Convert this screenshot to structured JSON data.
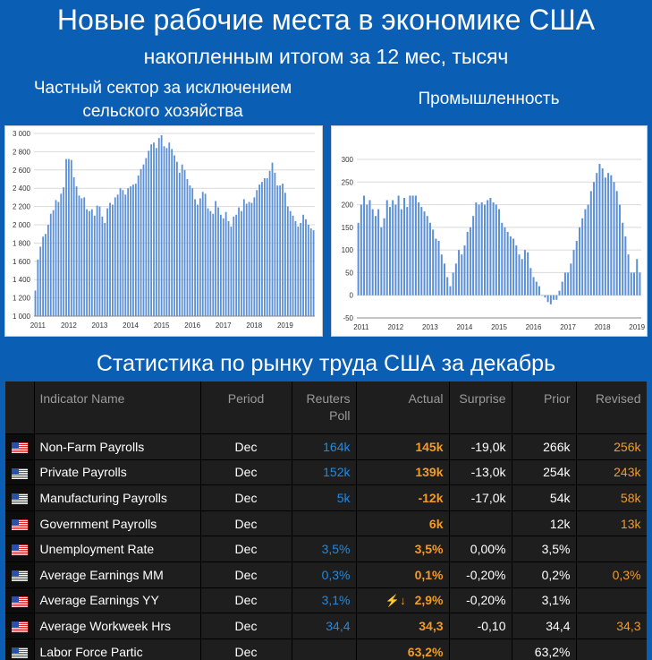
{
  "header": {
    "title": "Новые рабочие места в экономике США",
    "subtitle": "накопленным итогом за 12 мес, тысяч",
    "table_title": "Статистика по рынку труда США за декабрь"
  },
  "chart_data": [
    {
      "type": "bar",
      "title": "Частный сектор за исключением сельского хозяйства",
      "ylim": [
        1000,
        3000
      ],
      "yticks": [
        "1 000",
        "1 200",
        "1 400",
        "1 600",
        "1 800",
        "2 000",
        "2 200",
        "2 400",
        "2 600",
        "2 800",
        "3 000"
      ],
      "xticks": [
        "2011",
        "2012",
        "2013",
        "2014",
        "2015",
        "2016",
        "2017",
        "2018",
        "2019"
      ],
      "grid": true,
      "color": "#5b8fd6",
      "values": [
        1280,
        1620,
        1760,
        1870,
        1900,
        2000,
        2120,
        2160,
        2270,
        2250,
        2340,
        2410,
        2720,
        2720,
        2710,
        2520,
        2420,
        2320,
        2290,
        2300,
        2170,
        2150,
        2170,
        2100,
        2210,
        2200,
        2090,
        2020,
        2180,
        2240,
        2220,
        2300,
        2330,
        2400,
        2380,
        2330,
        2400,
        2420,
        2440,
        2450,
        2540,
        2610,
        2660,
        2730,
        2810,
        2880,
        2900,
        2840,
        2950,
        2980,
        2860,
        2840,
        2900,
        2830,
        2760,
        2690,
        2570,
        2660,
        2600,
        2500,
        2430,
        2400,
        2280,
        2220,
        2290,
        2360,
        2340,
        2180,
        2150,
        2120,
        2260,
        2190,
        2110,
        2070,
        2140,
        2040,
        1980,
        2090,
        2110,
        2190,
        2150,
        2280,
        2230,
        2250,
        2240,
        2300,
        2380,
        2440,
        2470,
        2510,
        2510,
        2590,
        2680,
        2570,
        2430,
        2430,
        2450,
        2350,
        2200,
        2150,
        2100,
        2040,
        1980,
        2020,
        2110,
        2060,
        2000,
        1960,
        1940
      ]
    },
    {
      "type": "bar",
      "title": "Промышленность",
      "ylim": [
        -50,
        300
      ],
      "yticks": [
        "-50",
        "0",
        "50",
        "100",
        "150",
        "200",
        "250",
        "300"
      ],
      "xticks": [
        "2011",
        "2012",
        "2013",
        "2014",
        "2015",
        "2016",
        "2017",
        "2018",
        "2019"
      ],
      "grid": true,
      "color": "#5b8fd6",
      "values": [
        160,
        200,
        220,
        200,
        210,
        190,
        175,
        190,
        150,
        170,
        210,
        195,
        210,
        200,
        220,
        190,
        215,
        195,
        220,
        220,
        220,
        205,
        195,
        185,
        175,
        160,
        145,
        125,
        120,
        90,
        70,
        40,
        20,
        50,
        70,
        100,
        90,
        110,
        140,
        150,
        175,
        205,
        200,
        205,
        200,
        210,
        215,
        205,
        200,
        190,
        160,
        150,
        140,
        130,
        125,
        110,
        90,
        80,
        100,
        95,
        60,
        40,
        30,
        20,
        0,
        -5,
        -15,
        -20,
        -10,
        -10,
        10,
        30,
        50,
        50,
        70,
        100,
        120,
        150,
        170,
        190,
        200,
        230,
        250,
        270,
        290,
        280,
        260,
        270,
        265,
        250,
        230,
        200,
        160,
        130,
        90,
        50,
        50,
        80,
        50
      ]
    }
  ],
  "table": {
    "columns": [
      "",
      "Indicator Name",
      "Period",
      "Reuters Poll",
      "Actual",
      "Surprise",
      "Prior",
      "Revised"
    ],
    "rows": [
      {
        "name": "Non-Farm Payrolls",
        "period": "Dec",
        "poll": "164k",
        "actual": "145k",
        "surprise": "-19,0k",
        "prior": "266k",
        "revised": "256k"
      },
      {
        "name": "Private Payrolls",
        "period": "Dec",
        "poll": "152k",
        "actual": "139k",
        "surprise": "-13,0k",
        "prior": "254k",
        "revised": "243k"
      },
      {
        "name": "Manufacturing Payrolls",
        "period": "Dec",
        "poll": "5k",
        "actual": "-12k",
        "surprise": "-17,0k",
        "prior": "54k",
        "revised": "58k"
      },
      {
        "name": "Government Payrolls",
        "period": "Dec",
        "poll": "",
        "actual": "6k",
        "surprise": "",
        "prior": "12k",
        "revised": "13k"
      },
      {
        "name": "Unemployment Rate",
        "period": "Dec",
        "poll": "3,5%",
        "actual": "3,5%",
        "surprise": "0,00%",
        "prior": "3,5%",
        "revised": ""
      },
      {
        "name": "Average Earnings MM",
        "period": "Dec",
        "poll": "0,3%",
        "actual": "0,1%",
        "surprise": "-0,20%",
        "prior": "0,2%",
        "revised": "0,3%"
      },
      {
        "name": "Average Earnings YY",
        "period": "Dec",
        "poll": "3,1%",
        "actual": "2,9%",
        "surprise": "-0,20%",
        "prior": "3,1%",
        "revised": "",
        "indicator": "⚡↓"
      },
      {
        "name": "Average Workweek Hrs",
        "period": "Dec",
        "poll": "34,4",
        "actual": "34,3",
        "surprise": "-0,10",
        "prior": "34,4",
        "revised": "34,3"
      },
      {
        "name": "Labor Force Partic",
        "period": "Dec",
        "poll": "",
        "actual": "63,2%",
        "surprise": "",
        "prior": "63,2%",
        "revised": ""
      }
    ],
    "colors": {
      "poll": "#1e8ae6",
      "actual": "#f59a23",
      "revised": "#f59a23"
    }
  }
}
